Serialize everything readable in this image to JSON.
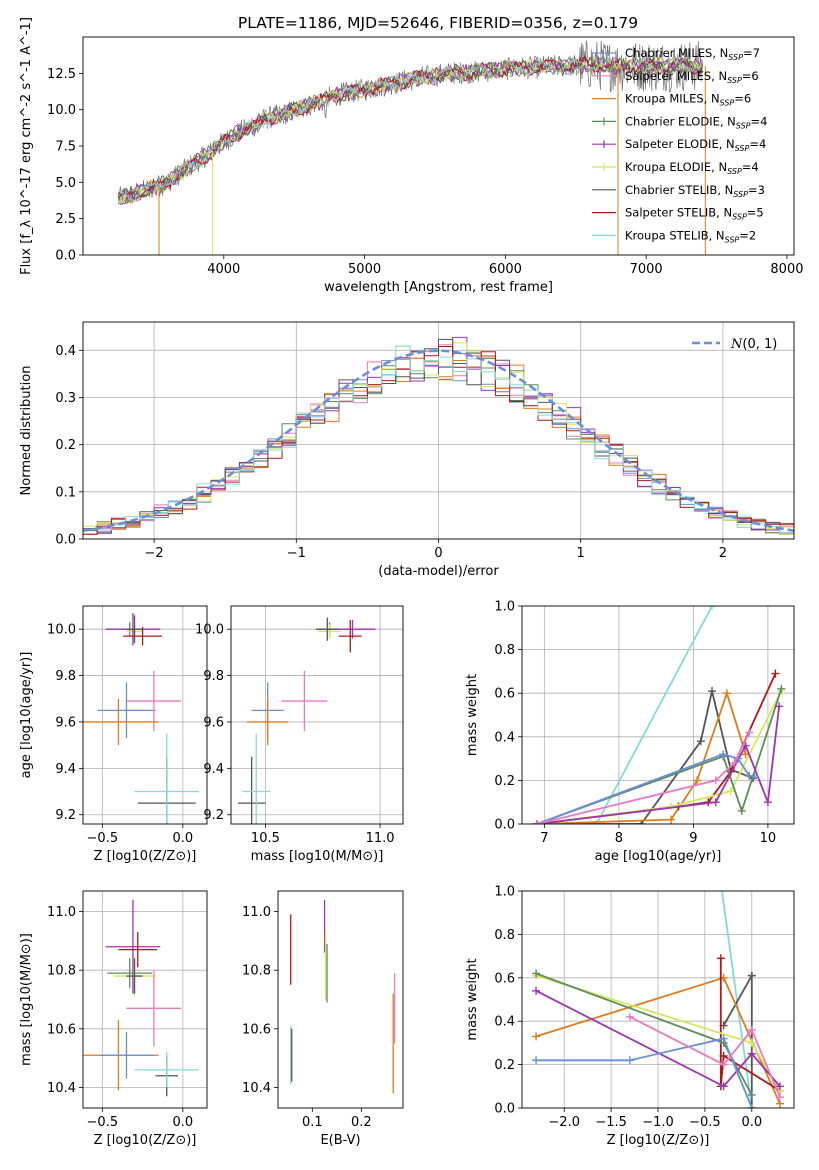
{
  "figure_title": "PLATE=1186, MJD=52646, FIBERID=0356, z=0.179",
  "colors": {
    "axis": "#000000",
    "grid": "#b0b0b0",
    "normal_curve": "#6a8fd8"
  },
  "chart_data": [
    {
      "id": "spectrum",
      "type": "line",
      "title": "PLATE=1186, MJD=52646, FIBERID=0356, z=0.179",
      "xlabel": "wavelength [Angstrom, rest frame]",
      "ylabel": "Flux [f_λ 10^-17 erg cm^-2 s^-1 A^-1]",
      "xlim": [
        3000,
        8050
      ],
      "ylim": [
        0,
        15
      ],
      "xticks": [
        4000,
        5000,
        6000,
        7000,
        8000
      ],
      "yticks": [
        0.0,
        2.5,
        5.0,
        7.5,
        10.0,
        12.5
      ],
      "legend_position": "top-right",
      "series": [
        {
          "name": "Chabrier MILES",
          "nssp": "7",
          "color": "#6a8fd8"
        },
        {
          "name": "Salpeter MILES",
          "nssp": "6",
          "color": "#e87ac0"
        },
        {
          "name": "Kroupa MILES",
          "nssp": "6",
          "color": "#e07b1a"
        },
        {
          "name": "Chabrier ELODIE",
          "nssp": "4",
          "color": "#5e8c5a"
        },
        {
          "name": "Salpeter ELODIE",
          "nssp": "4",
          "color": "#9a36b0"
        },
        {
          "name": "Kroupa ELODIE",
          "nssp": "4",
          "color": "#d4e85a"
        },
        {
          "name": "Chabrier STELIB",
          "nssp": "3",
          "color": "#555555"
        },
        {
          "name": "Salpeter STELIB",
          "nssp": "5",
          "color": "#b01818"
        },
        {
          "name": "Kroupa STELIB",
          "nssp": "2",
          "color": "#86d8de"
        }
      ],
      "x": [
        3250,
        3400,
        3600,
        3800,
        3900,
        4000,
        4100,
        4200,
        4300,
        4400,
        4600,
        4800,
        5000,
        5200,
        5400,
        5600,
        5800,
        6000,
        6200,
        6400,
        6600,
        6800,
        7000,
        7200,
        7400
      ],
      "y": [
        3.9,
        4.3,
        5.0,
        6.4,
        7.0,
        7.8,
        8.4,
        8.8,
        9.4,
        9.6,
        10.3,
        11.0,
        11.4,
        11.8,
        12.2,
        12.5,
        12.6,
        12.8,
        12.9,
        13.0,
        13.1,
        13.0,
        13.0,
        13.0,
        13.0
      ]
    },
    {
      "id": "residuals",
      "type": "line",
      "xlabel": "(data-model)/error",
      "ylabel": "Normed distribution",
      "xlim": [
        -2.5,
        2.5
      ],
      "ylim": [
        0,
        0.46
      ],
      "xticks": [
        -2,
        -1,
        0,
        1,
        2
      ],
      "yticks": [
        0.0,
        0.1,
        0.2,
        0.3,
        0.4
      ],
      "grid": true,
      "legend": [
        {
          "name": "N(0,1)",
          "style": "dashed"
        }
      ],
      "legend_position": "top-right",
      "hist_bins": [
        -2.5,
        -2.4,
        -2.3,
        -2.2,
        -2.1,
        -2.0,
        -1.9,
        -1.8,
        -1.7,
        -1.6,
        -1.5,
        -1.4,
        -1.3,
        -1.2,
        -1.1,
        -1.0,
        -0.9,
        -0.8,
        -0.7,
        -0.6,
        -0.5,
        -0.4,
        -0.3,
        -0.2,
        -0.1,
        0.0,
        0.1,
        0.2,
        0.3,
        0.4,
        0.5,
        0.6,
        0.7,
        0.8,
        0.9,
        1.0,
        1.1,
        1.2,
        1.3,
        1.4,
        1.5,
        1.6,
        1.7,
        1.8,
        1.9,
        2.0,
        2.1,
        2.2,
        2.3,
        2.4,
        2.5
      ]
    },
    {
      "id": "age-vs-Z",
      "type": "scatter",
      "xlabel": "Z [log10(Z/Z⊙)]",
      "ylabel": "age [log10(age/yr)]",
      "xlim": [
        -0.62,
        0.15
      ],
      "ylim": [
        9.16,
        10.1
      ],
      "xticks": [
        -0.5,
        0.0
      ],
      "yticks": [
        9.2,
        9.4,
        9.6,
        9.8,
        10.0
      ],
      "grid": true,
      "points": [
        {
          "x": -0.33,
          "y": 10.0,
          "xerr": 0.07,
          "yerr": 0.03,
          "color": "#5e8c5a"
        },
        {
          "x": -0.3,
          "y": 9.99,
          "xerr": 0.05,
          "yerr": 0.03,
          "color": "#d4e85a"
        },
        {
          "x": -0.31,
          "y": 10.0,
          "xerr": 0.17,
          "yerr": 0.07,
          "color": "#9a36b0"
        },
        {
          "x": -0.25,
          "y": 9.97,
          "xerr": 0.12,
          "yerr": 0.04,
          "color": "#b01818"
        },
        {
          "x": -0.3,
          "y": 10.0,
          "xerr": 0.05,
          "yerr": 0.06,
          "color": "#555555"
        },
        {
          "x": -0.35,
          "y": 9.65,
          "xerr": 0.18,
          "yerr": 0.12,
          "color": "#6a8fd8"
        },
        {
          "x": -0.18,
          "y": 9.69,
          "xerr": 0.17,
          "yerr": 0.13,
          "color": "#e87ac0"
        },
        {
          "x": -0.4,
          "y": 9.6,
          "xerr": 0.25,
          "yerr": 0.1,
          "color": "#e07b1a"
        },
        {
          "x": -0.1,
          "y": 9.25,
          "xerr": 0.18,
          "yerr": 0.2,
          "color": "#555555"
        },
        {
          "x": -0.1,
          "y": 9.3,
          "xerr": 0.2,
          "yerr": 0.25,
          "color": "#86d8de"
        }
      ]
    },
    {
      "id": "age-vs-mass",
      "type": "scatter",
      "xlabel": "mass [log10(M/M⊙)]",
      "ylabel": "",
      "xlim": [
        10.35,
        11.1
      ],
      "ylim": [
        9.16,
        10.1
      ],
      "xticks": [
        10.5,
        11.0
      ],
      "yticks": [
        9.2,
        9.4,
        9.6,
        9.8,
        10.0
      ],
      "grid": true,
      "points": [
        {
          "x": 10.78,
          "y": 10.0,
          "xerr": 0.06,
          "yerr": 0.03,
          "color": "#5e8c5a"
        },
        {
          "x": 10.78,
          "y": 9.99,
          "xerr": 0.05,
          "yerr": 0.03,
          "color": "#d4e85a"
        },
        {
          "x": 10.88,
          "y": 10.0,
          "xerr": 0.1,
          "yerr": 0.04,
          "color": "#9a36b0"
        },
        {
          "x": 10.87,
          "y": 9.97,
          "xerr": 0.05,
          "yerr": 0.07,
          "color": "#b01818"
        },
        {
          "x": 10.77,
          "y": 10.0,
          "xerr": 0.05,
          "yerr": 0.05,
          "color": "#555555"
        },
        {
          "x": 10.51,
          "y": 9.65,
          "xerr": 0.07,
          "yerr": 0.12,
          "color": "#6a8fd8"
        },
        {
          "x": 10.67,
          "y": 9.69,
          "xerr": 0.1,
          "yerr": 0.13,
          "color": "#e87ac0"
        },
        {
          "x": 10.51,
          "y": 9.6,
          "xerr": 0.09,
          "yerr": 0.1,
          "color": "#e07b1a"
        },
        {
          "x": 10.44,
          "y": 9.25,
          "xerr": 0.06,
          "yerr": 0.2,
          "color": "#555555"
        },
        {
          "x": 10.46,
          "y": 9.3,
          "xerr": 0.06,
          "yerr": 0.25,
          "color": "#86d8de"
        }
      ]
    },
    {
      "id": "weight-vs-age",
      "type": "line",
      "xlabel": "age [log10(age/yr)]",
      "ylabel": "mass weight",
      "xlim": [
        6.7,
        10.35
      ],
      "ylim": [
        0,
        1.0
      ],
      "xticks": [
        7,
        8,
        9,
        10
      ],
      "yticks": [
        0.0,
        0.2,
        0.4,
        0.6,
        0.8,
        1.0
      ],
      "grid": true,
      "series": [
        {
          "color": "#86d8de",
          "x": [
            6.9,
            7.7,
            9.25
          ],
          "y": [
            0.0,
            0.0,
            1.0
          ]
        },
        {
          "color": "#555555",
          "x": [
            6.9,
            8.3,
            9.1,
            9.25,
            9.5,
            9.8
          ],
          "y": [
            0.0,
            0.0,
            0.38,
            0.61,
            0.25,
            0.21
          ]
        },
        {
          "color": "#e07b1a",
          "x": [
            6.9,
            8.7,
            9.05,
            9.45,
            9.7
          ],
          "y": [
            0.0,
            0.02,
            0.2,
            0.6,
            0.32
          ]
        },
        {
          "color": "#b01818",
          "x": [
            6.9,
            8.8,
            9.2,
            9.5,
            10.1
          ],
          "y": [
            0.0,
            0.08,
            0.1,
            0.24,
            0.69
          ]
        },
        {
          "color": "#d4e85a",
          "x": [
            6.9,
            8.7,
            9.5,
            10.18
          ],
          "y": [
            0.0,
            0.08,
            0.15,
            0.61
          ]
        },
        {
          "color": "#5e8c5a",
          "x": [
            6.9,
            9.4,
            9.65,
            10.18
          ],
          "y": [
            0.0,
            0.31,
            0.06,
            0.62
          ]
        },
        {
          "color": "#9a36b0",
          "x": [
            6.9,
            9.3,
            9.7,
            10.0,
            10.15
          ],
          "y": [
            0.0,
            0.1,
            0.36,
            0.1,
            0.54
          ]
        },
        {
          "color": "#6a8fd8",
          "x": [
            6.9,
            9.4,
            9.6,
            9.75,
            9.82
          ],
          "y": [
            0.0,
            0.32,
            0.3,
            0.22,
            0.22
          ]
        },
        {
          "color": "#e87ac0",
          "x": [
            6.9,
            9.3,
            9.55,
            9.75
          ],
          "y": [
            0.0,
            0.2,
            0.28,
            0.42
          ]
        }
      ]
    },
    {
      "id": "mass-vs-Z",
      "type": "scatter",
      "xlabel": "Z [log10(Z/Z⊙)]",
      "ylabel": "mass [log10(M/M⊙)]",
      "xlim": [
        -0.62,
        0.15
      ],
      "ylim": [
        10.33,
        11.07
      ],
      "xticks": [
        -0.5,
        0.0
      ],
      "yticks": [
        10.4,
        10.6,
        10.8,
        11.0
      ],
      "grid": true,
      "points": [
        {
          "x": -0.31,
          "y": 10.88,
          "xerr": 0.17,
          "yerr": 0.16,
          "color": "#9a36b0"
        },
        {
          "x": -0.28,
          "y": 10.87,
          "xerr": 0.12,
          "yerr": 0.06,
          "color": "#b01818"
        },
        {
          "x": -0.33,
          "y": 10.79,
          "xerr": 0.14,
          "yerr": 0.05,
          "color": "#5e8c5a"
        },
        {
          "x": -0.3,
          "y": 10.78,
          "xerr": 0.13,
          "yerr": 0.07,
          "color": "#d4e85a"
        },
        {
          "x": -0.3,
          "y": 10.78,
          "xerr": 0.05,
          "yerr": 0.06,
          "color": "#555555"
        },
        {
          "x": -0.18,
          "y": 10.67,
          "xerr": 0.17,
          "yerr": 0.13,
          "color": "#e87ac0"
        },
        {
          "x": -0.4,
          "y": 10.51,
          "xerr": 0.25,
          "yerr": 0.12,
          "color": "#e07b1a"
        },
        {
          "x": -0.35,
          "y": 10.51,
          "xerr": 0.17,
          "yerr": 0.08,
          "color": "#6a8fd8"
        },
        {
          "x": -0.1,
          "y": 10.44,
          "xerr": 0.07,
          "yerr": 0.07,
          "color": "#555555"
        },
        {
          "x": -0.1,
          "y": 10.46,
          "xerr": 0.2,
          "yerr": 0.06,
          "color": "#86d8de"
        }
      ]
    },
    {
      "id": "mass-vs-EBV",
      "type": "scatter",
      "xlabel": "E(B-V)",
      "ylabel": "",
      "xlim": [
        0.03,
        0.285
      ],
      "ylim": [
        10.33,
        11.07
      ],
      "xticks": [
        0.1,
        0.2
      ],
      "yticks": [
        10.4,
        10.6,
        10.8,
        11.0
      ],
      "grid": false,
      "points": [
        {
          "x": 0.056,
          "y": 10.87,
          "yerr": 0.12,
          "color": "#b01818"
        },
        {
          "x": 0.056,
          "y": 10.51,
          "yerr": 0.1,
          "color": "#86d8de"
        },
        {
          "x": 0.058,
          "y": 10.51,
          "yerr": 0.09,
          "color": "#555555"
        },
        {
          "x": 0.125,
          "y": 10.95,
          "yerr": 0.09,
          "color": "#9a36b0"
        },
        {
          "x": 0.127,
          "y": 10.82,
          "yerr": 0.12,
          "color": "#d4e85a"
        },
        {
          "x": 0.13,
          "y": 10.79,
          "yerr": 0.1,
          "color": "#5e8c5a"
        },
        {
          "x": 0.268,
          "y": 10.67,
          "yerr": 0.12,
          "color": "#e87ac0"
        },
        {
          "x": 0.265,
          "y": 10.55,
          "yerr": 0.17,
          "color": "#e07b1a"
        }
      ]
    },
    {
      "id": "weight-vs-Z",
      "type": "line",
      "xlabel": "Z [log10(Z/Z⊙)]",
      "ylabel": "mass weight",
      "xlim": [
        -2.45,
        0.45
      ],
      "ylim": [
        0,
        1.0
      ],
      "xticks": [
        -2.0,
        -1.5,
        -1.0,
        -0.5,
        0.0
      ],
      "yticks": [
        0.0,
        0.2,
        0.4,
        0.6,
        0.8,
        1.0
      ],
      "grid": true,
      "series": [
        {
          "color": "#86d8de",
          "x": [
            -0.35,
            0.0
          ],
          "y": [
            1.1,
            0.0
          ]
        },
        {
          "color": "#555555",
          "x": [
            -0.3,
            0.0,
            0.0
          ],
          "y": [
            0.38,
            0.61,
            0.0
          ]
        },
        {
          "color": "#e07b1a",
          "x": [
            -2.3,
            -0.3,
            0.3
          ],
          "y": [
            0.33,
            0.6,
            0.02
          ]
        },
        {
          "color": "#b01818",
          "x": [
            -0.33,
            -0.33,
            -0.3,
            0.3
          ],
          "y": [
            0.69,
            0.1,
            0.24,
            0.08
          ]
        },
        {
          "color": "#d4e85a",
          "x": [
            -2.3,
            0.0,
            0.3
          ],
          "y": [
            0.61,
            0.3,
            0.08
          ]
        },
        {
          "color": "#5e8c5a",
          "x": [
            -2.3,
            -0.3,
            0.0
          ],
          "y": [
            0.62,
            0.3,
            0.06
          ]
        },
        {
          "color": "#9a36b0",
          "x": [
            -2.3,
            -0.3,
            0.0,
            0.3
          ],
          "y": [
            0.54,
            0.1,
            0.25,
            0.1
          ]
        },
        {
          "color": "#6a8fd8",
          "x": [
            -2.3,
            -1.3,
            -0.3,
            0.0
          ],
          "y": [
            0.22,
            0.22,
            0.32,
            0.0
          ]
        },
        {
          "color": "#e87ac0",
          "x": [
            -1.3,
            -0.3,
            0.0,
            0.3
          ],
          "y": [
            0.42,
            0.2,
            0.36,
            0.05
          ]
        }
      ]
    }
  ]
}
